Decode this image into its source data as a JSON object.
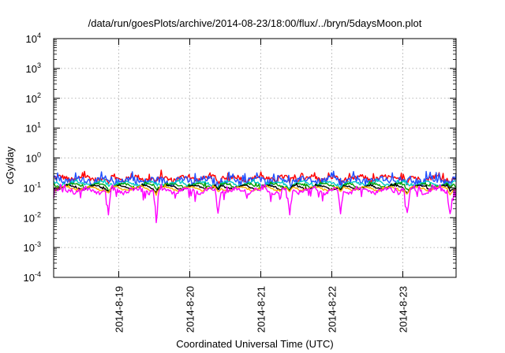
{
  "chart_data": {
    "type": "line",
    "title": "/data/run/goesPlots/archive/2014-08-23/18:00/flux/../bryn/5daysMoon.plot",
    "xlabel": "Coordinated Universal Time (UTC)",
    "ylabel": "cGy/day",
    "yscale": "log",
    "ylim": [
      0.0001,
      10000
    ],
    "yticks": [
      {
        "value": 0.0001,
        "base": "10",
        "exp": "-4"
      },
      {
        "value": 0.001,
        "base": "10",
        "exp": "-3"
      },
      {
        "value": 0.01,
        "base": "10",
        "exp": "-2"
      },
      {
        "value": 0.1,
        "base": "10",
        "exp": "-1"
      },
      {
        "value": 1,
        "base": "10",
        "exp": "0"
      },
      {
        "value": 10,
        "base": "10",
        "exp": "1"
      },
      {
        "value": 100,
        "base": "10",
        "exp": "2"
      },
      {
        "value": 1000,
        "base": "10",
        "exp": "3"
      },
      {
        "value": 10000,
        "base": "10",
        "exp": "4"
      }
    ],
    "xlim": [
      "2014-08-18T02:00",
      "2014-08-23T18:00"
    ],
    "xticks": [
      {
        "value": "2014-08-19T00:00",
        "label": "2014-8-19"
      },
      {
        "value": "2014-08-20T00:00",
        "label": "2014-8-20"
      },
      {
        "value": "2014-08-21T00:00",
        "label": "2014-8-21"
      },
      {
        "value": "2014-08-22T00:00",
        "label": "2014-8-22"
      },
      {
        "value": "2014-08-23T00:00",
        "label": "2014-8-23"
      }
    ],
    "grid": true,
    "legend": "none",
    "series": [
      {
        "color": "#ff0000",
        "base": 0.21,
        "noise": 0.25,
        "dips": 0.35
      },
      {
        "color": "#2050ff",
        "base": 0.18,
        "noise": 0.35,
        "dips": 0.25
      },
      {
        "color": "#00c8c8",
        "base": 0.14,
        "noise": 0.12,
        "dips": 0.2
      },
      {
        "color": "#00a000",
        "base": 0.12,
        "noise": 0.1,
        "dips": 0.2
      },
      {
        "color": "#000000",
        "base": 0.105,
        "noise": 0.08,
        "dips": 0.25
      },
      {
        "color": "#ffb000",
        "base": 0.095,
        "noise": 0.08,
        "dips": 0.3
      },
      {
        "color": "#ff00ff",
        "base": 0.082,
        "noise": 0.18,
        "dips": 0.95
      }
    ]
  }
}
